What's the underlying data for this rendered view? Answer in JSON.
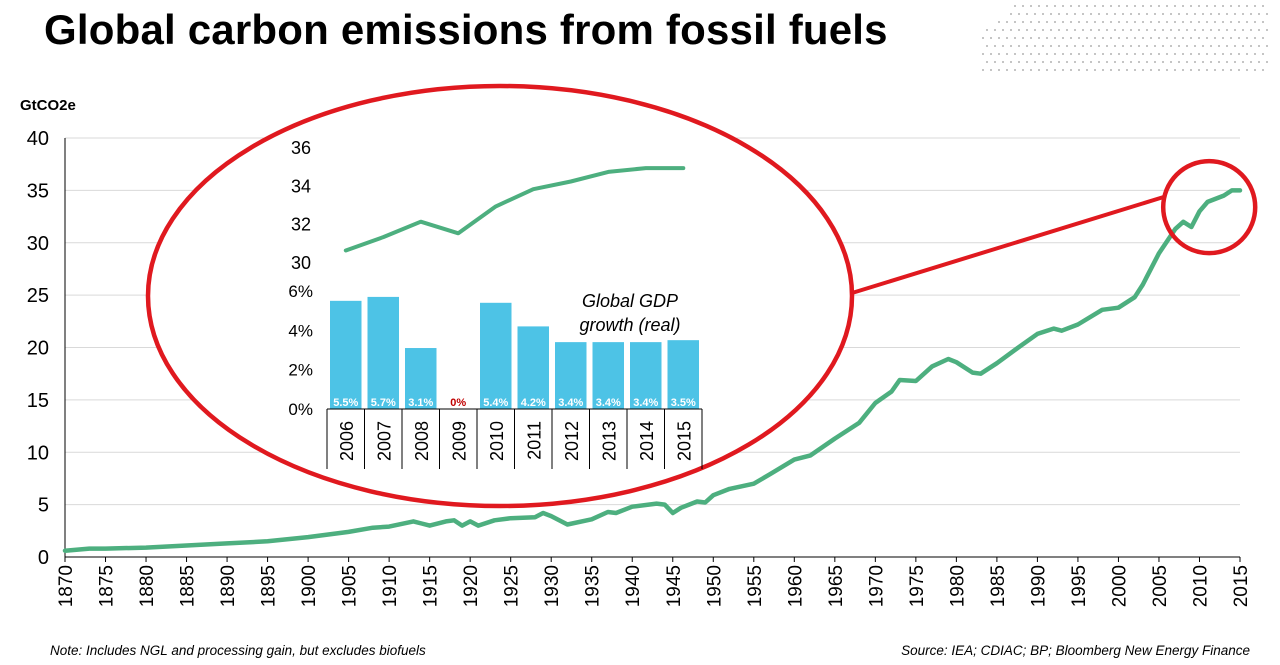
{
  "title": "Global carbon emissions from fossil fuels",
  "note": "Note: Includes NGL and processing gain, but excludes biofuels",
  "source": "Source: IEA; CDIAC; BP; Bloomberg New Energy Finance",
  "colors": {
    "line": "#4daf7f",
    "bar": "#4dc3e6",
    "highlight": "#e0191f",
    "zero_label": "#c00000",
    "grid": "#d9d9d9"
  },
  "chart_data": [
    {
      "id": "main",
      "type": "line",
      "title": "Global carbon emissions from fossil fuels",
      "ylabel": "GtCO2e",
      "xlim": [
        1870,
        2015
      ],
      "ylim": [
        0,
        40
      ],
      "yticks": [
        0,
        5,
        10,
        15,
        20,
        25,
        30,
        35,
        40
      ],
      "xticks": [
        1870,
        1875,
        1880,
        1885,
        1890,
        1895,
        1900,
        1905,
        1910,
        1915,
        1920,
        1925,
        1930,
        1935,
        1940,
        1945,
        1950,
        1955,
        1960,
        1965,
        1970,
        1975,
        1980,
        1985,
        1990,
        1995,
        2000,
        2005,
        2010,
        2015
      ],
      "grid": true,
      "x": [
        1870,
        1873,
        1875,
        1880,
        1885,
        1890,
        1895,
        1900,
        1905,
        1908,
        1910,
        1913,
        1914,
        1915,
        1917,
        1918,
        1919,
        1920,
        1921,
        1923,
        1925,
        1928,
        1929,
        1930,
        1932,
        1935,
        1937,
        1938,
        1940,
        1943,
        1944,
        1945,
        1946,
        1948,
        1949,
        1950,
        1952,
        1955,
        1957,
        1960,
        1962,
        1965,
        1968,
        1970,
        1972,
        1973,
        1975,
        1977,
        1979,
        1980,
        1982,
        1983,
        1985,
        1988,
        1990,
        1992,
        1993,
        1995,
        1998,
        2000,
        2002,
        2003,
        2005,
        2007,
        2008,
        2009,
        2010,
        2011,
        2013,
        2014,
        2015
      ],
      "values": [
        0.6,
        0.8,
        0.8,
        0.9,
        1.1,
        1.3,
        1.5,
        1.9,
        2.4,
        2.8,
        2.9,
        3.4,
        3.2,
        3.0,
        3.4,
        3.5,
        3.0,
        3.4,
        3.0,
        3.5,
        3.7,
        3.8,
        4.2,
        3.9,
        3.1,
        3.6,
        4.3,
        4.2,
        4.8,
        5.1,
        5.0,
        4.2,
        4.7,
        5.3,
        5.2,
        5.9,
        6.5,
        7.0,
        7.9,
        9.3,
        9.7,
        11.3,
        12.8,
        14.7,
        15.8,
        16.9,
        16.8,
        18.2,
        18.9,
        18.6,
        17.6,
        17.5,
        18.5,
        20.2,
        21.3,
        21.8,
        21.6,
        22.2,
        23.6,
        23.8,
        24.8,
        26.0,
        29.0,
        31.3,
        32.0,
        31.5,
        33.0,
        33.9,
        34.5,
        35.0,
        35.0
      ],
      "annotations": [
        "circle around 2006-2015 values",
        "callout line to inset chart"
      ]
    },
    {
      "id": "inset-emissions",
      "type": "line",
      "x": [
        2006,
        2007,
        2008,
        2009,
        2010,
        2011,
        2012,
        2013,
        2014,
        2015
      ],
      "values": [
        30.6,
        31.3,
        32.1,
        31.5,
        32.9,
        33.8,
        34.2,
        34.7,
        34.9,
        34.9
      ],
      "ylim": [
        30,
        36
      ],
      "yticks": [
        30,
        32,
        34,
        36
      ]
    },
    {
      "id": "inset-gdp",
      "type": "bar",
      "title_lines": [
        "Global GDP",
        "growth (real)"
      ],
      "categories": [
        "2006",
        "2007",
        "2008",
        "2009",
        "2010",
        "2011",
        "2012",
        "2013",
        "2014",
        "2015"
      ],
      "values": [
        5.5,
        5.7,
        3.1,
        0,
        5.4,
        4.2,
        3.4,
        3.4,
        3.4,
        3.5
      ],
      "labels": [
        "5.5%",
        "5.7%",
        "3.1%",
        "0%",
        "5.4%",
        "4.2%",
        "3.4%",
        "3.4%",
        "3.4%",
        "3.5%"
      ],
      "ylim": [
        0,
        6
      ],
      "yticks": [
        "0%",
        "2%",
        "4%",
        "6%"
      ],
      "ytick_values": [
        0,
        2,
        4,
        6
      ]
    }
  ]
}
